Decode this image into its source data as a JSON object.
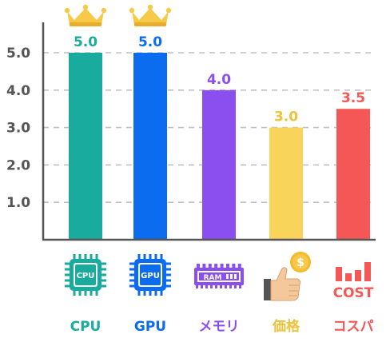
{
  "chart_data": {
    "type": "bar",
    "categories": [
      "CPU",
      "GPU",
      "メモリ",
      "価格",
      "コスパ"
    ],
    "values": [
      5.0,
      5.0,
      4.0,
      3.0,
      3.5
    ],
    "value_labels": [
      "5.0",
      "5.0",
      "4.0",
      "3.0",
      "3.5"
    ],
    "colors": [
      "#1aab9f",
      "#0b6cf0",
      "#8b4ff0",
      "#f8d45a",
      "#f55656"
    ],
    "yticks": [
      "1.0",
      "2.0",
      "3.0",
      "4.0",
      "5.0"
    ],
    "ylim": [
      0,
      5.5
    ],
    "grid": true,
    "top_marker": "crown-icon",
    "title": "",
    "xlabel": "",
    "ylabel": ""
  },
  "icons": [
    {
      "name": "cpu-chip-icon",
      "text": "CPU"
    },
    {
      "name": "gpu-chip-icon",
      "text": "GPU"
    },
    {
      "name": "ram-module-icon",
      "text": "RAM"
    },
    {
      "name": "price-hand-coin-icon",
      "text": "$"
    },
    {
      "name": "cost-bars-icon",
      "text": "COST"
    }
  ],
  "colors": {
    "crown": "#f7c948",
    "crown_shadow": "#e9ad2b",
    "axis": "#555555",
    "grid": "#c0c0c0"
  }
}
